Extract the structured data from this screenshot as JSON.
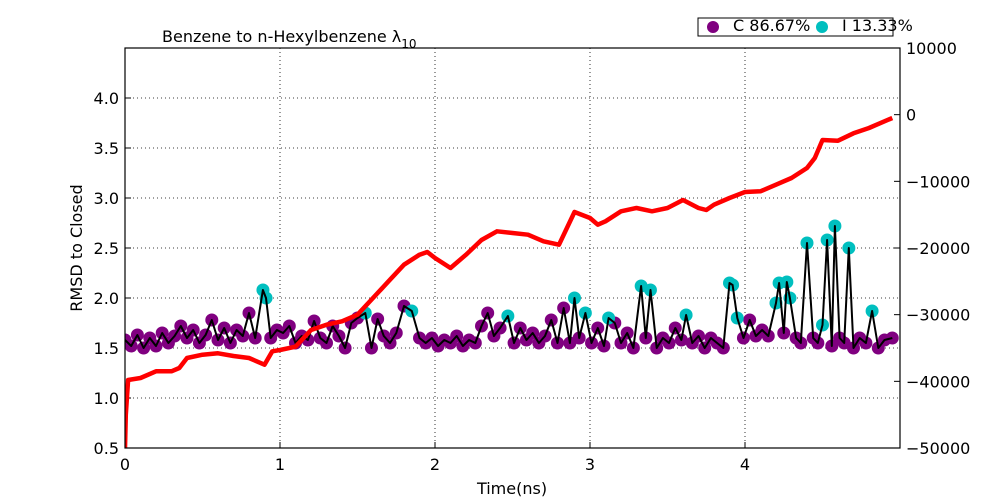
{
  "chart_data": {
    "type": "scatter-line",
    "title": "Benzene to n-Hexylbenzene λ",
    "title_subscript": "10",
    "x_label": "Time(ns)",
    "y_label": "RMSD to Closed",
    "xlim": [
      0,
      5
    ],
    "xticks": [
      0,
      1,
      2,
      3,
      4
    ],
    "ylim": [
      0.5,
      4.5
    ],
    "yticks": [
      0.5,
      {
        "value": 1,
        "label": "1.0"
      },
      1.5,
      {
        "value": 2,
        "label": "2.0"
      },
      2.5,
      {
        "value": 3,
        "label": "3.0"
      },
      3.5,
      {
        "value": 4,
        "label": "4.0"
      }
    ],
    "y2lim": [
      -50000,
      10000
    ],
    "y2ticks": [
      10000,
      0,
      {
        "value": -10000,
        "label": "−10000"
      },
      {
        "value": -20000,
        "label": "−20000"
      },
      {
        "value": -30000,
        "label": "−30000"
      },
      {
        "value": -40000,
        "label": "−40000"
      },
      {
        "value": -50000,
        "label": "−50000"
      }
    ],
    "grid": true,
    "legend": "top right",
    "line": {
      "color": "#000000",
      "x": [
        0,
        0.04,
        0.08,
        0.12,
        0.16,
        0.2,
        0.24,
        0.28,
        0.32,
        0.36,
        0.4,
        0.44,
        0.48,
        0.52,
        0.56,
        0.6,
        0.64,
        0.68,
        0.72,
        0.76,
        0.8,
        0.84,
        0.89,
        0.91,
        0.94,
        0.98,
        1.02,
        1.06,
        1.1,
        1.14,
        1.18,
        1.22,
        1.26,
        1.3,
        1.34,
        1.38,
        1.42,
        1.46,
        1.5,
        1.55,
        1.59,
        1.63,
        1.67,
        1.71,
        1.75,
        1.8,
        1.85,
        1.9,
        1.94,
        1.98,
        2.02,
        2.06,
        2.1,
        2.14,
        2.18,
        2.22,
        2.26,
        2.3,
        2.34,
        2.38,
        2.42,
        2.47,
        2.51,
        2.55,
        2.59,
        2.63,
        2.67,
        2.71,
        2.75,
        2.79,
        2.83,
        2.87,
        2.9,
        2.93,
        2.97,
        3.01,
        3.05,
        3.09,
        3.12,
        3.16,
        3.2,
        3.24,
        3.28,
        3.33,
        3.36,
        3.39,
        3.43,
        3.47,
        3.51,
        3.55,
        3.59,
        3.62,
        3.66,
        3.7,
        3.74,
        3.78,
        3.82,
        3.86,
        3.9,
        3.92,
        3.95,
        3.99,
        4.03,
        4.07,
        4.11,
        4.15,
        4.2,
        4.22,
        4.25,
        4.27,
        4.29,
        4.33,
        4.36,
        4.4,
        4.44,
        4.47,
        4.5,
        4.53,
        4.56,
        4.58,
        4.61,
        4.64,
        4.67,
        4.7,
        4.74,
        4.78,
        4.82,
        4.86,
        4.9,
        4.95
      ],
      "values": [
        1.58,
        1.52,
        1.63,
        1.5,
        1.6,
        1.52,
        1.65,
        1.55,
        1.62,
        1.72,
        1.6,
        1.68,
        1.55,
        1.63,
        1.78,
        1.58,
        1.7,
        1.55,
        1.68,
        1.62,
        1.85,
        1.6,
        2.08,
        2.0,
        1.6,
        1.68,
        1.65,
        1.72,
        1.55,
        1.62,
        1.58,
        1.77,
        1.6,
        1.55,
        1.72,
        1.62,
        1.5,
        1.75,
        1.8,
        1.85,
        1.5,
        1.79,
        1.62,
        1.55,
        1.65,
        1.92,
        1.87,
        1.6,
        1.55,
        1.6,
        1.52,
        1.58,
        1.55,
        1.62,
        1.52,
        1.58,
        1.55,
        1.72,
        1.85,
        1.62,
        1.7,
        1.82,
        1.55,
        1.7,
        1.58,
        1.65,
        1.55,
        1.62,
        1.78,
        1.55,
        1.9,
        1.55,
        2.0,
        1.6,
        1.85,
        1.55,
        1.7,
        1.52,
        1.8,
        1.75,
        1.55,
        1.65,
        1.5,
        2.12,
        1.6,
        2.08,
        1.5,
        1.6,
        1.55,
        1.7,
        1.58,
        1.83,
        1.55,
        1.62,
        1.5,
        1.6,
        1.55,
        1.5,
        2.15,
        2.13,
        1.8,
        1.6,
        1.78,
        1.62,
        1.68,
        1.62,
        1.95,
        2.15,
        1.65,
        2.16,
        2.0,
        1.6,
        1.55,
        2.55,
        1.6,
        1.55,
        1.73,
        2.58,
        1.52,
        2.72,
        1.6,
        1.55,
        2.5,
        1.5,
        1.6,
        1.55,
        1.87,
        1.5,
        1.58,
        1.6
      ]
    },
    "series": [
      {
        "name": "C 86.67%",
        "color": "#800080",
        "x": [
          0,
          0.04,
          0.08,
          0.12,
          0.16,
          0.2,
          0.24,
          0.28,
          0.32,
          0.36,
          0.4,
          0.44,
          0.48,
          0.52,
          0.56,
          0.6,
          0.64,
          0.68,
          0.72,
          0.76,
          0.8,
          0.84,
          0.94,
          0.98,
          1.02,
          1.06,
          1.1,
          1.14,
          1.18,
          1.22,
          1.26,
          1.3,
          1.34,
          1.38,
          1.42,
          1.46,
          1.5,
          1.59,
          1.63,
          1.67,
          1.71,
          1.75,
          1.8,
          1.9,
          1.94,
          1.98,
          2.02,
          2.06,
          2.1,
          2.14,
          2.18,
          2.22,
          2.26,
          2.3,
          2.34,
          2.38,
          2.42,
          2.51,
          2.55,
          2.59,
          2.63,
          2.67,
          2.71,
          2.75,
          2.79,
          2.83,
          2.87,
          2.93,
          3.01,
          3.05,
          3.09,
          3.16,
          3.2,
          3.24,
          3.28,
          3.36,
          3.43,
          3.47,
          3.51,
          3.55,
          3.59,
          3.66,
          3.7,
          3.74,
          3.78,
          3.82,
          3.86,
          3.99,
          4.03,
          4.07,
          4.11,
          4.15,
          4.25,
          4.33,
          4.36,
          4.44,
          4.47,
          4.56,
          4.61,
          4.64,
          4.7,
          4.74,
          4.78,
          4.86,
          4.9,
          4.95
        ],
        "values": [
          1.58,
          1.52,
          1.63,
          1.5,
          1.6,
          1.52,
          1.65,
          1.55,
          1.62,
          1.72,
          1.6,
          1.68,
          1.55,
          1.63,
          1.78,
          1.58,
          1.7,
          1.55,
          1.68,
          1.62,
          1.85,
          1.6,
          1.6,
          1.68,
          1.65,
          1.72,
          1.55,
          1.62,
          1.58,
          1.77,
          1.6,
          1.55,
          1.72,
          1.62,
          1.5,
          1.75,
          1.8,
          1.5,
          1.79,
          1.62,
          1.55,
          1.65,
          1.92,
          1.6,
          1.55,
          1.6,
          1.52,
          1.58,
          1.55,
          1.62,
          1.52,
          1.58,
          1.55,
          1.72,
          1.85,
          1.62,
          1.7,
          1.55,
          1.7,
          1.58,
          1.65,
          1.55,
          1.62,
          1.78,
          1.55,
          1.9,
          1.55,
          1.6,
          1.55,
          1.7,
          1.52,
          1.75,
          1.55,
          1.65,
          1.5,
          1.6,
          1.5,
          1.6,
          1.55,
          1.7,
          1.58,
          1.55,
          1.62,
          1.5,
          1.6,
          1.55,
          1.5,
          1.6,
          1.78,
          1.62,
          1.68,
          1.62,
          1.65,
          1.6,
          1.55,
          1.6,
          1.55,
          1.52,
          1.6,
          1.55,
          1.5,
          1.6,
          1.55,
          1.5,
          1.58,
          1.6
        ]
      },
      {
        "name": "I 13.33%",
        "color": "#00bfbf",
        "x": [
          0.89,
          0.91,
          1.55,
          1.85,
          2.47,
          2.9,
          2.97,
          3.12,
          3.33,
          3.39,
          3.62,
          3.9,
          3.92,
          3.95,
          4.2,
          4.22,
          4.27,
          4.29,
          4.4,
          4.5,
          4.53,
          4.58,
          4.67,
          4.82
        ],
        "values": [
          2.08,
          2.0,
          1.85,
          1.87,
          1.82,
          2.0,
          1.85,
          1.8,
          2.12,
          2.08,
          1.83,
          2.15,
          2.13,
          1.8,
          1.95,
          2.15,
          2.16,
          2.0,
          2.55,
          1.73,
          2.58,
          2.72,
          2.5,
          1.87
        ]
      }
    ],
    "y2_series": {
      "axis": "y2",
      "color": "#ff0000",
      "x": [
        0,
        0.005,
        0.02,
        0.1,
        0.2,
        0.3,
        0.35,
        0.4,
        0.5,
        0.6,
        0.7,
        0.8,
        0.9,
        0.95,
        1.0,
        1.1,
        1.2,
        1.3,
        1.4,
        1.5,
        1.6,
        1.7,
        1.8,
        1.9,
        1.95,
        2.0,
        2.1,
        2.2,
        2.3,
        2.4,
        2.5,
        2.6,
        2.7,
        2.8,
        2.9,
        3.0,
        3.05,
        3.1,
        3.2,
        3.3,
        3.4,
        3.5,
        3.6,
        3.7,
        3.75,
        3.8,
        3.9,
        4.0,
        4.1,
        4.2,
        4.3,
        4.4,
        4.45,
        4.5,
        4.6,
        4.7,
        4.8,
        4.9,
        4.95
      ],
      "values": [
        -50000,
        -45000,
        -39800,
        -39500,
        -38500,
        -38500,
        -38000,
        -36500,
        -36000,
        -35800,
        -36200,
        -36500,
        -37500,
        -35500,
        -35300,
        -34800,
        -32300,
        -31500,
        -31000,
        -30000,
        -27500,
        -25000,
        -22500,
        -21000,
        -20600,
        -21500,
        -23000,
        -21000,
        -18800,
        -17500,
        -17750,
        -18000,
        -19000,
        -19500,
        -14600,
        -15500,
        -16500,
        -16000,
        -14500,
        -14000,
        -14500,
        -14000,
        -12800,
        -14000,
        -14300,
        -13500,
        -12500,
        -11600,
        -11500,
        -10500,
        -9500,
        -8000,
        -6500,
        -3800,
        -3900,
        -2800,
        -2000,
        -1000,
        -500
      ]
    }
  }
}
